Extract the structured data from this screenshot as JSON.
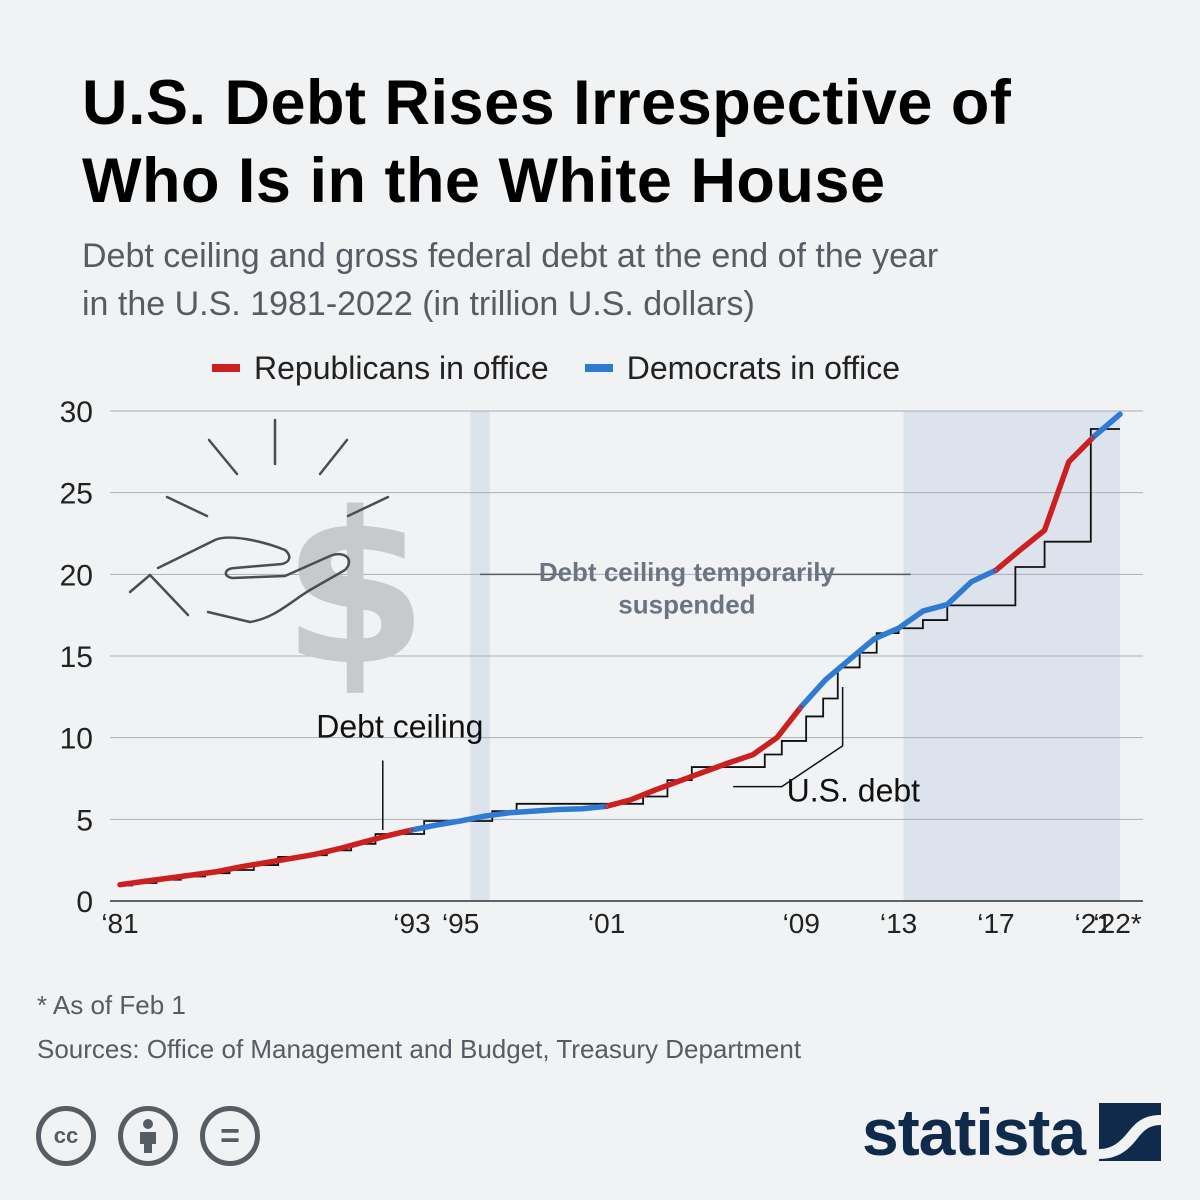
{
  "colors": {
    "republican": "#cc1f1f",
    "democrat": "#2f7bd3",
    "ceiling": "#111111",
    "suspended_shade": "#dce3ec"
  },
  "header": {
    "title_line1": "U.S. Debt Rises Irrespective of",
    "title_line2": "Who Is in the White House",
    "subtitle_line1": "Debt ceiling and gross federal debt at the end of the year",
    "subtitle_line2": "in the U.S. 1981-2022 (in trillion U.S. dollars)"
  },
  "chart_data": {
    "type": "line",
    "title": "",
    "xlabel": "",
    "ylabel": "",
    "ylim": [
      0,
      30
    ],
    "y_ticks": [
      0,
      5,
      10,
      15,
      20,
      25,
      30
    ],
    "x_tick_labels": [
      {
        "year": 1981,
        "label": "‘81"
      },
      {
        "year": 1993,
        "label": "‘93"
      },
      {
        "year": 1995,
        "label": "‘95"
      },
      {
        "year": 2001,
        "label": "‘01"
      },
      {
        "year": 2009,
        "label": "‘09"
      },
      {
        "year": 2013,
        "label": "‘13"
      },
      {
        "year": 2017,
        "label": "‘17"
      },
      {
        "year": 2021,
        "label": "‘21"
      },
      {
        "year": 2022,
        "label": "‘22*"
      }
    ],
    "grid": true,
    "legend": {
      "position": "top",
      "entries": [
        {
          "name": "Republicans in office",
          "color": "#cc1f1f"
        },
        {
          "name": "Democrats in office",
          "color": "#2f7bd3"
        }
      ]
    },
    "suspended_periods": [
      [
        1995.4,
        1996.2
      ],
      [
        2013.2,
        2022.1
      ]
    ],
    "series": [
      {
        "name": "U.S. debt",
        "x": [
          1981,
          1982,
          1983,
          1984,
          1985,
          1986,
          1987,
          1988,
          1989,
          1990,
          1991,
          1992,
          1993,
          1994,
          1995,
          1996,
          1997,
          1998,
          1999,
          2000,
          2001,
          2002,
          2003,
          2004,
          2005,
          2006,
          2007,
          2008,
          2009,
          2010,
          2011,
          2012,
          2013,
          2014,
          2015,
          2016,
          2017,
          2018,
          2019,
          2020,
          2021,
          2022.1
        ],
        "y": [
          1.0,
          1.2,
          1.4,
          1.6,
          1.8,
          2.1,
          2.35,
          2.6,
          2.85,
          3.2,
          3.6,
          4.0,
          4.35,
          4.65,
          4.9,
          5.2,
          5.4,
          5.5,
          5.6,
          5.65,
          5.8,
          6.2,
          6.8,
          7.35,
          7.9,
          8.45,
          8.95,
          10.0,
          11.9,
          13.55,
          14.8,
          16.05,
          16.7,
          17.75,
          18.15,
          19.55,
          20.25,
          21.5,
          22.7,
          26.9,
          28.4,
          29.8
        ],
        "segments": [
          {
            "party": "republican",
            "from": 1981,
            "to": 1993
          },
          {
            "party": "democrat",
            "from": 1993,
            "to": 2001
          },
          {
            "party": "republican",
            "from": 2001,
            "to": 2009
          },
          {
            "party": "democrat",
            "from": 2009,
            "to": 2017
          },
          {
            "party": "republican",
            "from": 2017,
            "to": 2021
          },
          {
            "party": "democrat",
            "from": 2021,
            "to": 2022.1
          }
        ]
      },
      {
        "name": "Debt ceiling",
        "type": "step",
        "x": [
          1981,
          1981.5,
          1982.5,
          1983.5,
          1984.5,
          1985.5,
          1986.5,
          1987.5,
          1988.5,
          1989.5,
          1990.5,
          1991.5,
          1993.5,
          1996.3,
          1997.3,
          2001.8,
          2002.5,
          2003.5,
          2004.5,
          2006.5,
          2007.5,
          2008.2,
          2009.2,
          2009.9,
          2010.5,
          2011.4,
          2012.1,
          2013.0,
          2014.0,
          2015.0,
          2016.0,
          2017.8,
          2019.0,
          2020.9,
          2022.1
        ],
        "y": [
          0.95,
          1.1,
          1.3,
          1.5,
          1.7,
          1.9,
          2.2,
          2.7,
          2.8,
          3.1,
          3.5,
          4.1,
          4.9,
          5.5,
          5.95,
          5.95,
          6.4,
          7.4,
          8.2,
          8.2,
          8.97,
          9.8,
          11.3,
          12.4,
          14.3,
          15.2,
          16.4,
          16.7,
          17.2,
          18.1,
          18.1,
          20.45,
          22.0,
          28.9,
          28.9
        ]
      }
    ],
    "annotations": [
      {
        "text": "Debt ceiling"
      },
      {
        "text": "U.S. debt"
      },
      {
        "text_line1": "Debt ceiling temporarily",
        "text_line2": "suspended"
      }
    ]
  },
  "footer": {
    "footnote": "* As of Feb 1",
    "sources": "Sources: Office of Management and Budget, Treasury Department",
    "cc_icons": [
      {
        "icon": "cc-icon",
        "glyph": "cc"
      },
      {
        "icon": "attribution-icon",
        "glyph": ""
      },
      {
        "icon": "no-derivatives-icon",
        "glyph": "="
      }
    ],
    "logo_text": "statista"
  }
}
